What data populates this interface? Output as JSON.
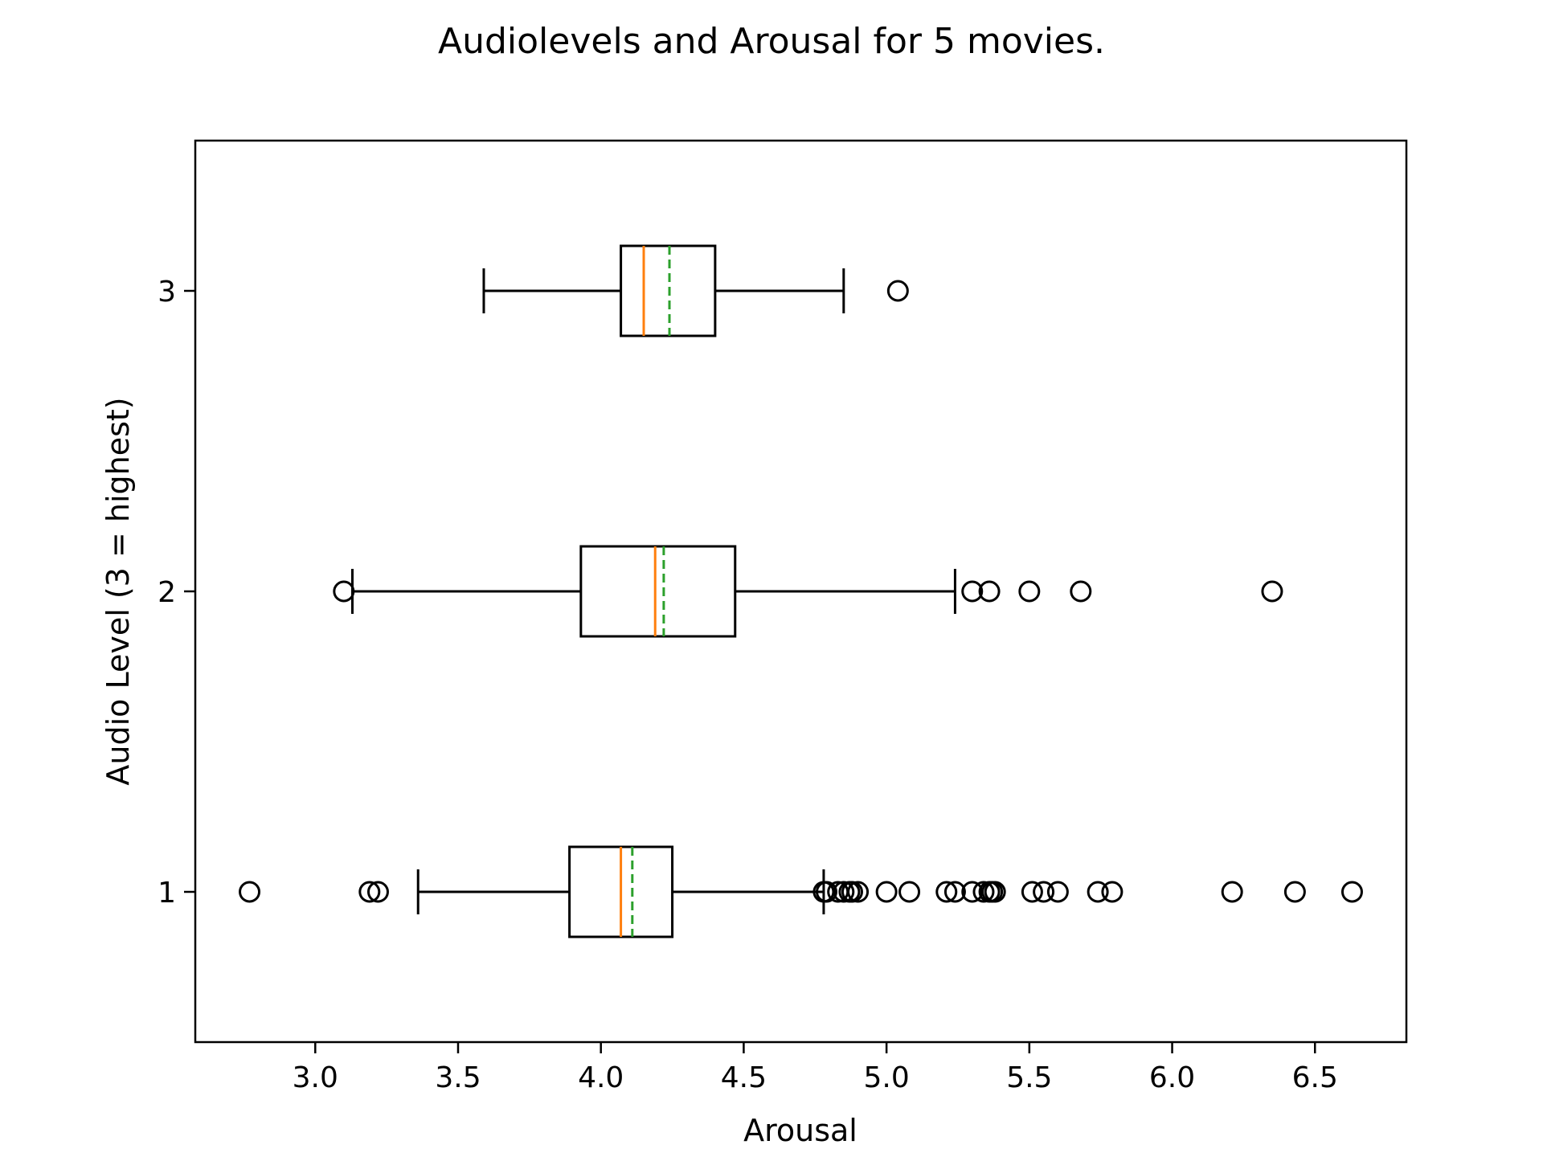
{
  "chart_data": {
    "type": "boxplot",
    "orientation": "horizontal",
    "title": "Audiolevels and Arousal for 5 movies.",
    "xlabel": "Arousal",
    "ylabel": "Audio Level (3 = highest)",
    "xlim": [
      2.58,
      6.82
    ],
    "ylim": [
      0.5,
      3.5
    ],
    "xticks": [
      3.0,
      3.5,
      4.0,
      4.5,
      5.0,
      5.5,
      6.0,
      6.5
    ],
    "xtick_labels": [
      "3.0",
      "3.5",
      "4.0",
      "4.5",
      "5.0",
      "5.5",
      "6.0",
      "6.5"
    ],
    "yticks": [
      1,
      2,
      3
    ],
    "ytick_labels": [
      "1",
      "2",
      "3"
    ],
    "grid": false,
    "colors": {
      "box": "#000000",
      "median": "#ff7f0e",
      "mean": "#2ca02c"
    },
    "series": [
      {
        "category": "1",
        "whisker_low": 3.36,
        "q1": 3.89,
        "median": 4.07,
        "mean": 4.11,
        "q3": 4.25,
        "whisker_high": 4.78,
        "outliers": [
          2.77,
          3.19,
          3.22,
          4.78,
          4.79,
          4.83,
          4.85,
          4.87,
          4.88,
          4.9,
          5.0,
          5.08,
          5.21,
          5.24,
          5.3,
          5.34,
          5.36,
          5.37,
          5.38,
          5.51,
          5.55,
          5.6,
          5.74,
          5.79,
          6.21,
          6.43,
          6.63
        ]
      },
      {
        "category": "2",
        "whisker_low": 3.13,
        "q1": 3.93,
        "median": 4.19,
        "mean": 4.22,
        "q3": 4.47,
        "whisker_high": 5.24,
        "outliers": [
          3.1,
          5.3,
          5.36,
          5.5,
          5.68,
          6.35
        ]
      },
      {
        "category": "3",
        "whisker_low": 3.59,
        "q1": 4.07,
        "median": 4.15,
        "mean": 4.24,
        "q3": 4.4,
        "whisker_high": 4.85,
        "outliers": [
          5.04
        ]
      }
    ]
  }
}
